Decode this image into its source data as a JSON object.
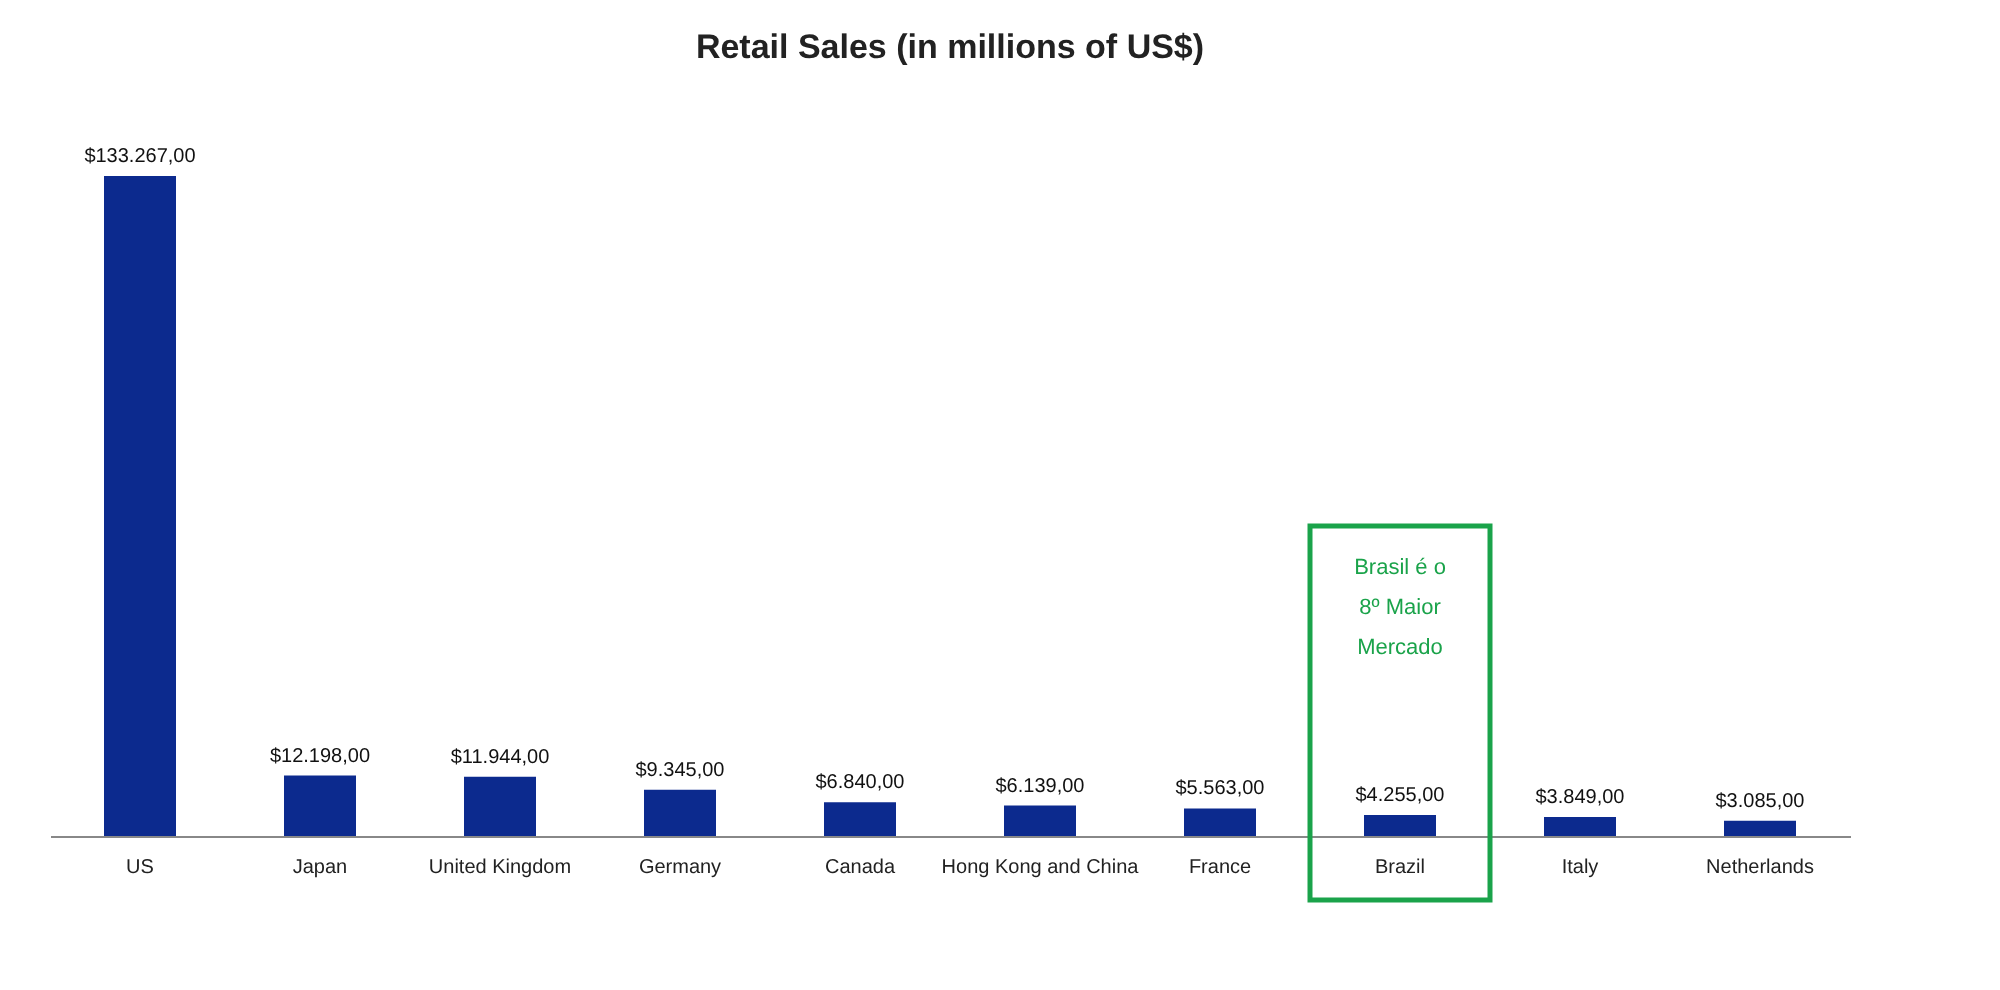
{
  "chart_data": {
    "type": "bar",
    "title": "Retail Sales (in millions of US$)",
    "categories": [
      "US",
      "Japan",
      "United Kingdom",
      "Germany",
      "Canada",
      "Hong Kong and China",
      "France",
      "Brazil",
      "Italy",
      "Netherlands"
    ],
    "values": [
      133267,
      12198,
      11944,
      9345,
      6840,
      6139,
      5563,
      4255,
      3849,
      3085
    ],
    "value_labels": [
      "$133.267,00",
      "$12.198,00",
      "$11.944,00",
      "$9.345,00",
      "$6.840,00",
      "$6.139,00",
      "$5.563,00",
      "$4.255,00",
      "$3.849,00",
      "$3.085,00"
    ],
    "color": "#0c2a8e",
    "annotations": [
      "Brasil é o\n8º Maior\nMercado"
    ],
    "tick_labels": "x",
    "grid": false
  }
}
